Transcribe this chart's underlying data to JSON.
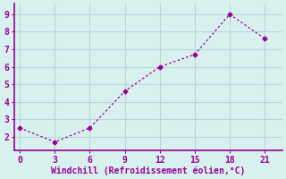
{
  "x": [
    0,
    3,
    6,
    9,
    12,
    15,
    18,
    21
  ],
  "y": [
    2.5,
    1.7,
    2.5,
    4.6,
    6.0,
    6.7,
    9.0,
    7.6
  ],
  "line_color": "#990099",
  "marker": "D",
  "marker_size": 2.5,
  "bg_color": "#d8f0ee",
  "grid_color": "#b8d8d8",
  "xlabel": "Windchill (Refroidissement éolien,°C)",
  "xlabel_color": "#990099",
  "tick_color": "#990099",
  "spine_color": "#990099",
  "xlim": [
    -0.5,
    22.5
  ],
  "ylim": [
    1.2,
    9.6
  ],
  "xticks": [
    0,
    3,
    6,
    9,
    12,
    15,
    18,
    21
  ],
  "yticks": [
    2,
    3,
    4,
    5,
    6,
    7,
    8,
    9
  ],
  "line_width": 0.9,
  "font_size": 7
}
